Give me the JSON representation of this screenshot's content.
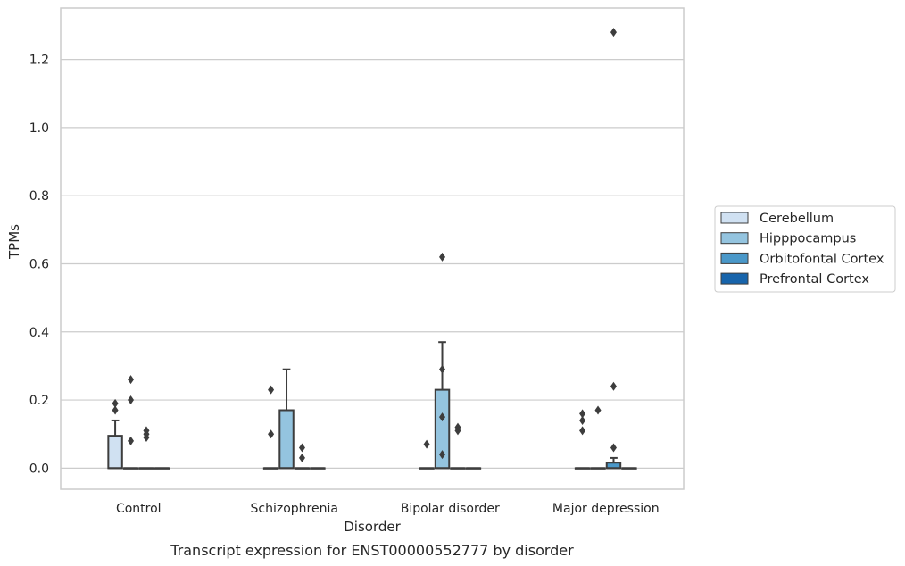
{
  "chart_data": {
    "type": "box",
    "title": "",
    "caption": "Transcript expression for ENST00000552777 by disorder",
    "xlabel": "Disorder",
    "ylabel": "TPMs",
    "ylim": [
      -0.062,
      1.351
    ],
    "yticks": [
      "0.0",
      "0.2",
      "0.4",
      "0.6",
      "0.8",
      "1.0",
      "1.2"
    ],
    "ytick_values": [
      0,
      0.2,
      0.4,
      0.6,
      0.8,
      1.0,
      1.2
    ],
    "grid": true,
    "legend_position": "right-center",
    "categories": [
      "Control",
      "Schizophrenia",
      "Bipolar disorder",
      "Major depression"
    ],
    "series": [
      {
        "name": "Cerebellum",
        "color": "#d0e1f2",
        "boxes": [
          {
            "q1": 0,
            "median": 0,
            "q3": 0.095,
            "whisker_low": 0,
            "whisker_high": 0.14,
            "outliers": [
              0.17,
              0.19
            ]
          },
          {
            "q1": 0,
            "median": 0,
            "q3": 0,
            "whisker_low": 0,
            "whisker_high": 0,
            "outliers": [
              0.1,
              0.23
            ]
          },
          {
            "q1": 0,
            "median": 0,
            "q3": 0,
            "whisker_low": 0,
            "whisker_high": 0,
            "outliers": [
              0.07
            ]
          },
          {
            "q1": 0,
            "median": 0,
            "q3": 0,
            "whisker_low": 0,
            "whisker_high": 0,
            "outliers": [
              0.11,
              0.14,
              0.16
            ]
          }
        ]
      },
      {
        "name": "Hipppocampus",
        "color": "#94c4df",
        "boxes": [
          {
            "q1": 0,
            "median": 0,
            "q3": 0,
            "whisker_low": 0,
            "whisker_high": 0,
            "outliers": [
              0.08,
              0.2,
              0.26
            ]
          },
          {
            "q1": 0,
            "median": 0,
            "q3": 0.17,
            "whisker_low": 0,
            "whisker_high": 0.29,
            "outliers": []
          },
          {
            "q1": 0,
            "median": 0,
            "q3": 0.23,
            "whisker_low": 0,
            "whisker_high": 0.37,
            "outliers": [
              0.04,
              0.15,
              0.29,
              0.62
            ]
          },
          {
            "q1": 0,
            "median": 0,
            "q3": 0,
            "whisker_low": 0,
            "whisker_high": 0,
            "outliers": [
              0.17
            ]
          }
        ]
      },
      {
        "name": "Orbitofontal Cortex",
        "color": "#4a98c9",
        "boxes": [
          {
            "q1": 0,
            "median": 0,
            "q3": 0,
            "whisker_low": 0,
            "whisker_high": 0,
            "outliers": [
              0.09,
              0.1,
              0.11
            ]
          },
          {
            "q1": 0,
            "median": 0,
            "q3": 0,
            "whisker_low": 0,
            "whisker_high": 0,
            "outliers": [
              0.03,
              0.06
            ]
          },
          {
            "q1": 0,
            "median": 0,
            "q3": 0,
            "whisker_low": 0,
            "whisker_high": 0,
            "outliers": [
              0.11,
              0.12
            ]
          },
          {
            "q1": 0,
            "median": 0,
            "q3": 0.016,
            "whisker_low": 0,
            "whisker_high": 0.03,
            "outliers": [
              0.06,
              0.24,
              1.28
            ]
          }
        ]
      },
      {
        "name": "Prefrontal Cortex",
        "color": "#1764ab",
        "boxes": [
          {
            "q1": 0,
            "median": 0,
            "q3": 0,
            "whisker_low": 0,
            "whisker_high": 0,
            "outliers": []
          },
          {
            "q1": 0,
            "median": 0,
            "q3": 0,
            "whisker_low": 0,
            "whisker_high": 0,
            "outliers": []
          },
          {
            "q1": 0,
            "median": 0,
            "q3": 0,
            "whisker_low": 0,
            "whisker_high": 0,
            "outliers": []
          },
          {
            "q1": 0,
            "median": 0,
            "q3": 0,
            "whisker_low": 0,
            "whisker_high": 0,
            "outliers": []
          }
        ]
      }
    ]
  }
}
